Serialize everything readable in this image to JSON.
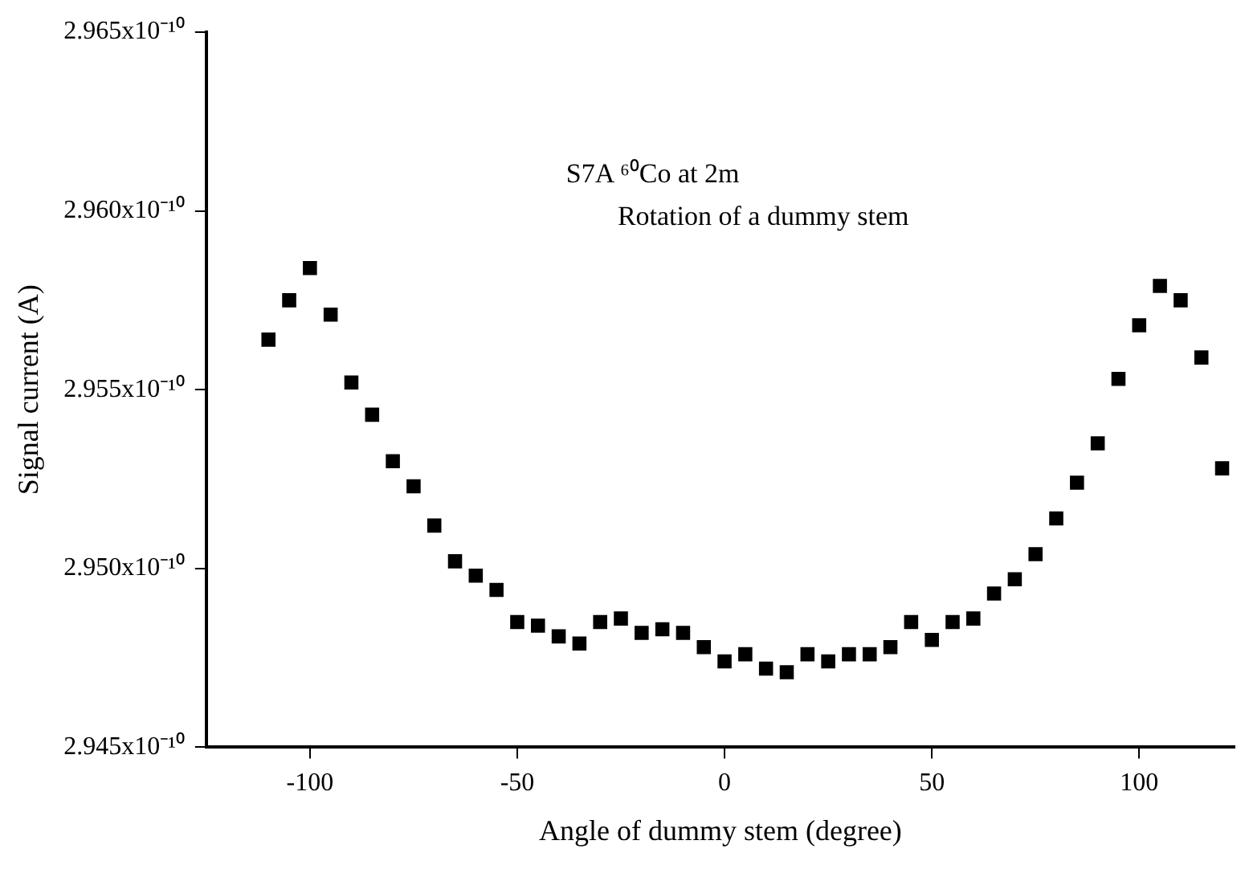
{
  "chart_data": {
    "type": "scatter",
    "xlabel": "Angle of dummy stem (degree)",
    "ylabel": "Signal current (A)",
    "annotations": [
      "S7A ⁶⁰Co at 2m",
      "Rotation of a dummy stem"
    ],
    "x": [
      -110,
      -105,
      -100,
      -95,
      -90,
      -85,
      -80,
      -75,
      -70,
      -65,
      -60,
      -55,
      -50,
      -45,
      -40,
      -35,
      -30,
      -25,
      -20,
      -15,
      -10,
      -5,
      0,
      5,
      10,
      15,
      20,
      25,
      30,
      35,
      40,
      45,
      50,
      55,
      60,
      65,
      70,
      75,
      80,
      85,
      90,
      95,
      100,
      105,
      110,
      115,
      120
    ],
    "series": [
      {
        "color": "#000000",
        "values": [
          2.9564e-10,
          2.9575e-10,
          2.9584e-10,
          2.9571e-10,
          2.9552e-10,
          2.9543e-10,
          2.953e-10,
          2.9523e-10,
          2.9512e-10,
          2.9502e-10,
          2.9498e-10,
          2.9494e-10,
          2.9485e-10,
          2.9484e-10,
          2.9481e-10,
          2.9479e-10,
          2.9485e-10,
          2.9486e-10,
          2.9482e-10,
          2.9483e-10,
          2.9482e-10,
          2.9478e-10,
          2.9474e-10,
          2.9476e-10,
          2.9472e-10,
          2.9471e-10,
          2.9476e-10,
          2.9474e-10,
          2.9476e-10,
          2.9476e-10,
          2.9478e-10,
          2.9485e-10,
          2.948e-10,
          2.9485e-10,
          2.9486e-10,
          2.9493e-10,
          2.9497e-10,
          2.9504e-10,
          2.9514e-10,
          2.9524e-10,
          2.9535e-10,
          2.9553e-10,
          2.9568e-10,
          2.9579e-10,
          2.9575e-10,
          2.9559e-10,
          2.9528e-10
        ]
      }
    ],
    "xlim": [
      -125,
      123
    ],
    "xticks": [
      -100,
      -50,
      0,
      50,
      100
    ],
    "ylim": [
      2.945e-10,
      2.965e-10
    ],
    "yticks": [
      {
        "value": 2.945e-10,
        "label": "2.945x10⁻¹⁰"
      },
      {
        "value": 2.95e-10,
        "label": "2.950x10⁻¹⁰"
      },
      {
        "value": 2.955e-10,
        "label": "2.955x10⁻¹⁰"
      },
      {
        "value": 2.96e-10,
        "label": "2.960x10⁻¹⁰"
      },
      {
        "value": 2.965e-10,
        "label": "2.965x10⁻¹⁰"
      }
    ],
    "grid": false,
    "legend": false,
    "marker": "square"
  }
}
